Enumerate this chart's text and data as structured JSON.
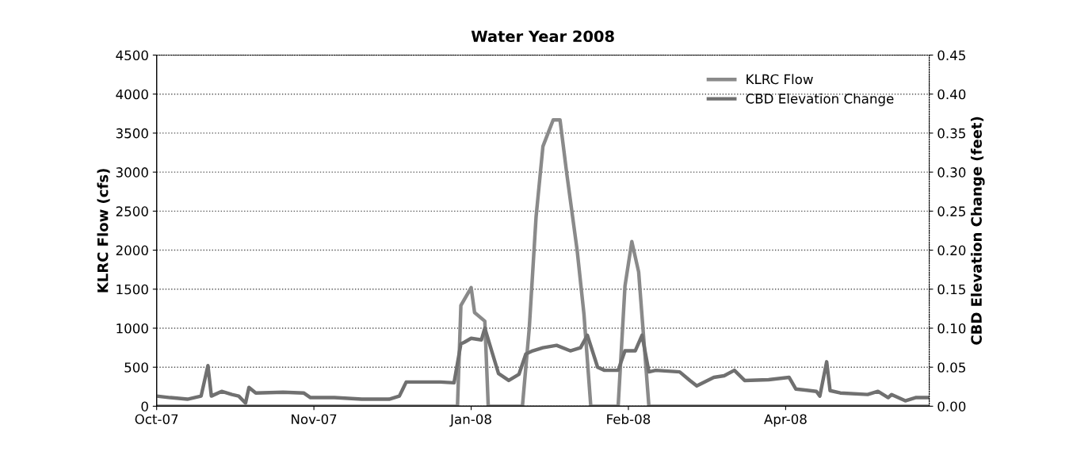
{
  "chart_data": {
    "type": "line",
    "title": "Water Year 2008",
    "ylabel": "KLRC Flow (cfs)",
    "y2label": "CBD Elevation Change (feet)",
    "xlim": [
      "2007-10-01",
      "2008-05-14"
    ],
    "xticks": [
      {
        "value": "2007-10-01",
        "label": "Oct-07"
      },
      {
        "value": "2007-11-16",
        "label": "Nov-07"
      },
      {
        "value": "2008-01-01",
        "label": "Jan-08"
      },
      {
        "value": "2008-02-16",
        "label": "Feb-08"
      },
      {
        "value": "2008-04-02",
        "label": "Apr-08"
      }
    ],
    "ylim": [
      0,
      4500
    ],
    "yticks": [
      0,
      500,
      1000,
      1500,
      2000,
      2500,
      3000,
      3500,
      4000,
      4500
    ],
    "y2lim": [
      0,
      0.45
    ],
    "y2ticks": [
      {
        "value": 0,
        "label": "0.00"
      },
      {
        "value": 0.05,
        "label": "0.05"
      },
      {
        "value": 0.1,
        "label": "0.10"
      },
      {
        "value": 0.15,
        "label": "0.15"
      },
      {
        "value": 0.2,
        "label": "0.20"
      },
      {
        "value": 0.25,
        "label": "0.25"
      },
      {
        "value": 0.3,
        "label": "0.30"
      },
      {
        "value": 0.35,
        "label": "0.35"
      },
      {
        "value": 0.4,
        "label": "0.40"
      },
      {
        "value": 0.45,
        "label": "0.45"
      }
    ],
    "grid": "y",
    "legend": "top right",
    "line_style": "solid",
    "marker": "none",
    "series": [
      {
        "name": "KLRC Flow",
        "color": "#8a8a8a",
        "x": [
          "2007-10-01",
          "2007-12-28",
          "2007-12-29",
          "2008-01-01",
          "2008-01-02",
          "2008-01-05",
          "2008-01-06",
          "2008-01-16",
          "2008-01-18",
          "2008-01-20",
          "2008-01-22",
          "2008-01-25",
          "2008-01-27",
          "2008-01-29",
          "2008-02-01",
          "2008-02-03",
          "2008-02-05",
          "2008-02-13",
          "2008-02-15",
          "2008-02-17",
          "2008-02-19",
          "2008-02-22",
          "2008-05-14"
        ],
        "values": [
          0,
          0,
          1290,
          1520,
          1200,
          1090,
          0,
          0,
          1000,
          2430,
          3330,
          3670,
          3670,
          2970,
          2000,
          1180,
          0,
          0,
          1540,
          2110,
          1720,
          0,
          0
        ]
      },
      {
        "name": "CBD Elevation Change",
        "color": "#707070",
        "axis": "y2",
        "x": [
          "2007-10-01",
          "2007-10-05",
          "2007-10-10",
          "2007-10-14",
          "2007-10-16",
          "2007-10-17",
          "2007-10-20",
          "2007-10-23",
          "2007-10-25",
          "2007-10-27",
          "2007-10-28",
          "2007-10-30",
          "2007-11-07",
          "2007-11-13",
          "2007-11-15",
          "2007-11-22",
          "2007-11-30",
          "2007-12-08",
          "2007-12-11",
          "2007-12-13",
          "2007-12-23",
          "2007-12-27",
          "2007-12-29",
          "2007-12-30",
          "2008-01-01",
          "2008-01-04",
          "2008-01-05",
          "2008-01-07",
          "2008-01-09",
          "2008-01-12",
          "2008-01-15",
          "2008-01-17",
          "2008-01-19",
          "2008-01-22",
          "2008-01-26",
          "2008-01-30",
          "2008-02-02",
          "2008-02-04",
          "2008-02-07",
          "2008-02-09",
          "2008-02-13",
          "2008-02-15",
          "2008-02-18",
          "2008-02-20",
          "2008-02-22",
          "2008-02-24",
          "2008-03-02",
          "2008-03-05",
          "2008-03-07",
          "2008-03-12",
          "2008-03-15",
          "2008-03-18",
          "2008-03-21",
          "2008-03-28",
          "2008-04-03",
          "2008-04-05",
          "2008-04-11",
          "2008-04-12",
          "2008-04-14",
          "2008-04-15",
          "2008-04-18",
          "2008-04-26",
          "2008-04-29",
          "2008-05-02",
          "2008-05-03",
          "2008-05-07",
          "2008-05-10",
          "2008-05-14"
        ],
        "values": [
          0.013,
          0.011,
          0.009,
          0.013,
          0.052,
          0.013,
          0.019,
          0.015,
          0.013,
          0.004,
          0.024,
          0.017,
          0.018,
          0.017,
          0.011,
          0.011,
          0.009,
          0.009,
          0.013,
          0.031,
          0.031,
          0.03,
          0.08,
          0.082,
          0.087,
          0.085,
          0.1,
          0.071,
          0.042,
          0.033,
          0.041,
          0.067,
          0.071,
          0.075,
          0.078,
          0.071,
          0.075,
          0.091,
          0.05,
          0.046,
          0.046,
          0.071,
          0.071,
          0.091,
          0.044,
          0.046,
          0.044,
          0.033,
          0.026,
          0.037,
          0.039,
          0.046,
          0.033,
          0.034,
          0.037,
          0.022,
          0.019,
          0.013,
          0.057,
          0.02,
          0.017,
          0.015,
          0.019,
          0.011,
          0.015,
          0.007,
          0.011,
          0.011
        ]
      }
    ]
  }
}
